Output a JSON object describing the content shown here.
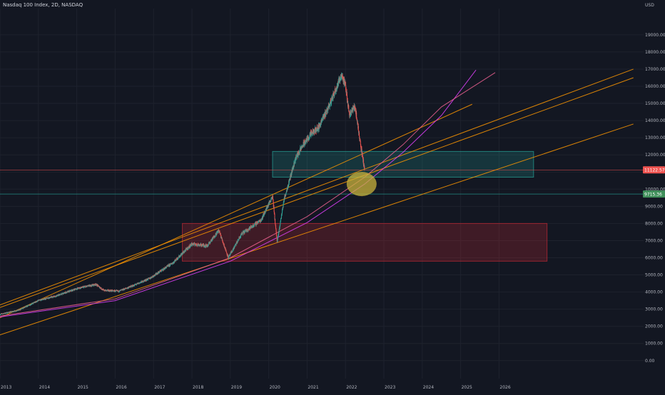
{
  "header": {
    "title": "Nasdaq 100 Index, 2D, NASDAQ",
    "currency": "USD"
  },
  "colors": {
    "background": "#131722",
    "grid": "#1e222d",
    "candle_up": "#26a69a",
    "candle_down": "#ef5350",
    "trendline": "#ff9800",
    "arc": "#e040fb",
    "upper_zone": "#26a69a",
    "lower_zone": "#b22833",
    "highlight": "#c9b33c"
  },
  "chart_data": {
    "type": "candlestick",
    "title": "Nasdaq 100 Index, 2D, NASDAQ",
    "ylabel": "USD",
    "ylim": [
      -300,
      20200
    ],
    "xlim": [
      2013.0,
      2030.0
    ],
    "y_ticks": [
      0,
      1000,
      2000,
      3000,
      4000,
      5000,
      6000,
      7000,
      8000,
      9000,
      10000,
      11000,
      12000,
      13000,
      14000,
      15000,
      16000,
      17000,
      18000,
      19000
    ],
    "y_tick_labels": [
      "0.00",
      "1000.00",
      "2000.00",
      "3000.00",
      "4000.00",
      "5000.00",
      "6000.00",
      "7000.00",
      "8000.00",
      "9000.00",
      "10000.00",
      "11000.00",
      "12000.00",
      "13000.00",
      "14000.00",
      "15000.00",
      "16000.00",
      "17000.00",
      "18000.00",
      "19000.00"
    ],
    "x_ticks": [
      2013,
      2014,
      2015,
      2016,
      2017,
      2018,
      2019,
      2020,
      2021,
      2022,
      2023,
      2024,
      2025,
      2026
    ],
    "x_tick_labels": [
      "2013",
      "2014",
      "2015",
      "2016",
      "2017",
      "2018",
      "2019",
      "2020",
      "2021",
      "2022",
      "2023",
      "2024",
      "2025",
      "2026"
    ],
    "price_path": [
      [
        2013.0,
        2700
      ],
      [
        2013.5,
        2950
      ],
      [
        2014.0,
        3500
      ],
      [
        2014.5,
        3800
      ],
      [
        2015.0,
        4200
      ],
      [
        2015.5,
        4450
      ],
      [
        2015.7,
        4100
      ],
      [
        2016.1,
        4050
      ],
      [
        2016.5,
        4400
      ],
      [
        2016.9,
        4800
      ],
      [
        2017.5,
        5700
      ],
      [
        2018.0,
        6800
      ],
      [
        2018.4,
        6700
      ],
      [
        2018.7,
        7600
      ],
      [
        2018.95,
        6000
      ],
      [
        2019.3,
        7400
      ],
      [
        2019.8,
        8200
      ],
      [
        2020.1,
        9600
      ],
      [
        2020.22,
        6900
      ],
      [
        2020.4,
        9400
      ],
      [
        2020.7,
        11800
      ],
      [
        2020.9,
        12600
      ],
      [
        2021.1,
        13200
      ],
      [
        2021.3,
        13600
      ],
      [
        2021.6,
        15000
      ],
      [
        2021.9,
        16700
      ],
      [
        2022.0,
        16000
      ],
      [
        2022.1,
        14400
      ],
      [
        2022.25,
        14800
      ],
      [
        2022.4,
        12500
      ],
      [
        2022.5,
        11100
      ]
    ],
    "last_price": "11122.57",
    "reference_price": "9715.36",
    "annotations": {
      "upper_zone": {
        "x": [
          2020.1,
          2026.9
        ],
        "y": [
          10700,
          12200
        ]
      },
      "lower_zone": {
        "x": [
          2017.75,
          2027.25
        ],
        "y": [
          5800,
          8000
        ]
      },
      "highlight": {
        "x": 2022.42,
        "y": 10300
      },
      "trendlines": [
        {
          "x": [
            2013.0,
            2029.5
          ],
          "y": [
            1500,
            13800
          ]
        },
        {
          "x": [
            2013.0,
            2029.5
          ],
          "y": [
            3100,
            16500
          ]
        },
        {
          "x": [
            2013.0,
            2029.5
          ],
          "y": [
            3250,
            17000
          ]
        },
        {
          "x": [
            2013.0,
            2025.3
          ],
          "y": [
            2500,
            14950
          ]
        }
      ],
      "arcs": [
        {
          "x": [
            2013.0,
            2016.0,
            2019.0,
            2021.0,
            2022.5,
            2023.5,
            2024.5,
            2025.4
          ],
          "y": [
            2550,
            3500,
            5800,
            8050,
            10300,
            12150,
            14300,
            16950
          ]
        },
        {
          "x": [
            2013.0,
            2016.0,
            2019.0,
            2021.0,
            2022.5,
            2023.5,
            2024.5,
            2025.9
          ],
          "y": [
            2600,
            3600,
            6000,
            8400,
            10700,
            12600,
            14800,
            16800
          ]
        }
      ]
    }
  }
}
